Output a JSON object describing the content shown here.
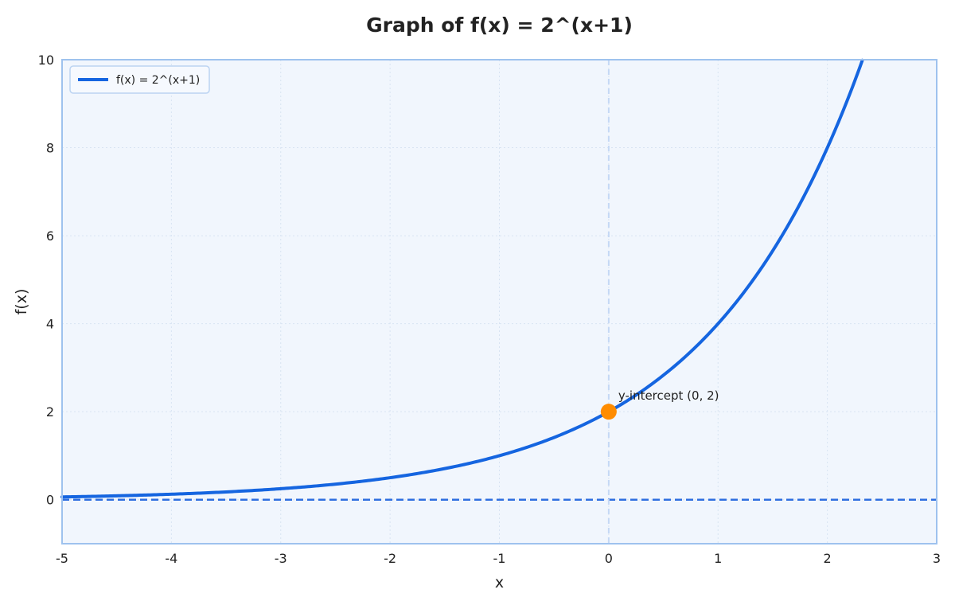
{
  "chart_data": {
    "type": "line",
    "title": "Graph of f(x) = 2^(x+1)",
    "xlabel": "x",
    "ylabel": "f(x)",
    "xlim": [
      -5,
      3
    ],
    "ylim": [
      -1,
      10
    ],
    "x_ticks": [
      -5,
      -4,
      -3,
      -2,
      -1,
      0,
      1,
      2,
      3
    ],
    "y_ticks": [
      0,
      2,
      4,
      6,
      8,
      10
    ],
    "grid": true,
    "legend": {
      "position": "top-left"
    },
    "series": [
      {
        "name": "f(x) = 2^(x+1)",
        "color": "#1565e0",
        "style": "solid",
        "x": [
          -5,
          -4.5,
          -4,
          -3.5,
          -3,
          -2.5,
          -2,
          -1.5,
          -1,
          -0.5,
          0,
          0.5,
          1,
          1.5,
          2,
          2.32
        ],
        "y": [
          0.0625,
          0.088,
          0.125,
          0.177,
          0.25,
          0.354,
          0.5,
          0.707,
          1,
          1.414,
          2,
          2.828,
          4,
          5.657,
          8,
          9.99
        ]
      }
    ],
    "reference_lines": [
      {
        "kind": "horizontal",
        "value": 0,
        "style": "dashed",
        "color": "#2f6fe0"
      },
      {
        "kind": "vertical",
        "value": 0,
        "style": "dashed",
        "color": "#c5d8f5"
      }
    ],
    "points": [
      {
        "x": 0,
        "y": 2,
        "color": "#ff8c00",
        "label": "y-intercept (0, 2)"
      }
    ],
    "colors": {
      "plot_background": "#f1f6fd",
      "frame": "#9ec2ee",
      "grid": "#d8e3f2"
    }
  }
}
